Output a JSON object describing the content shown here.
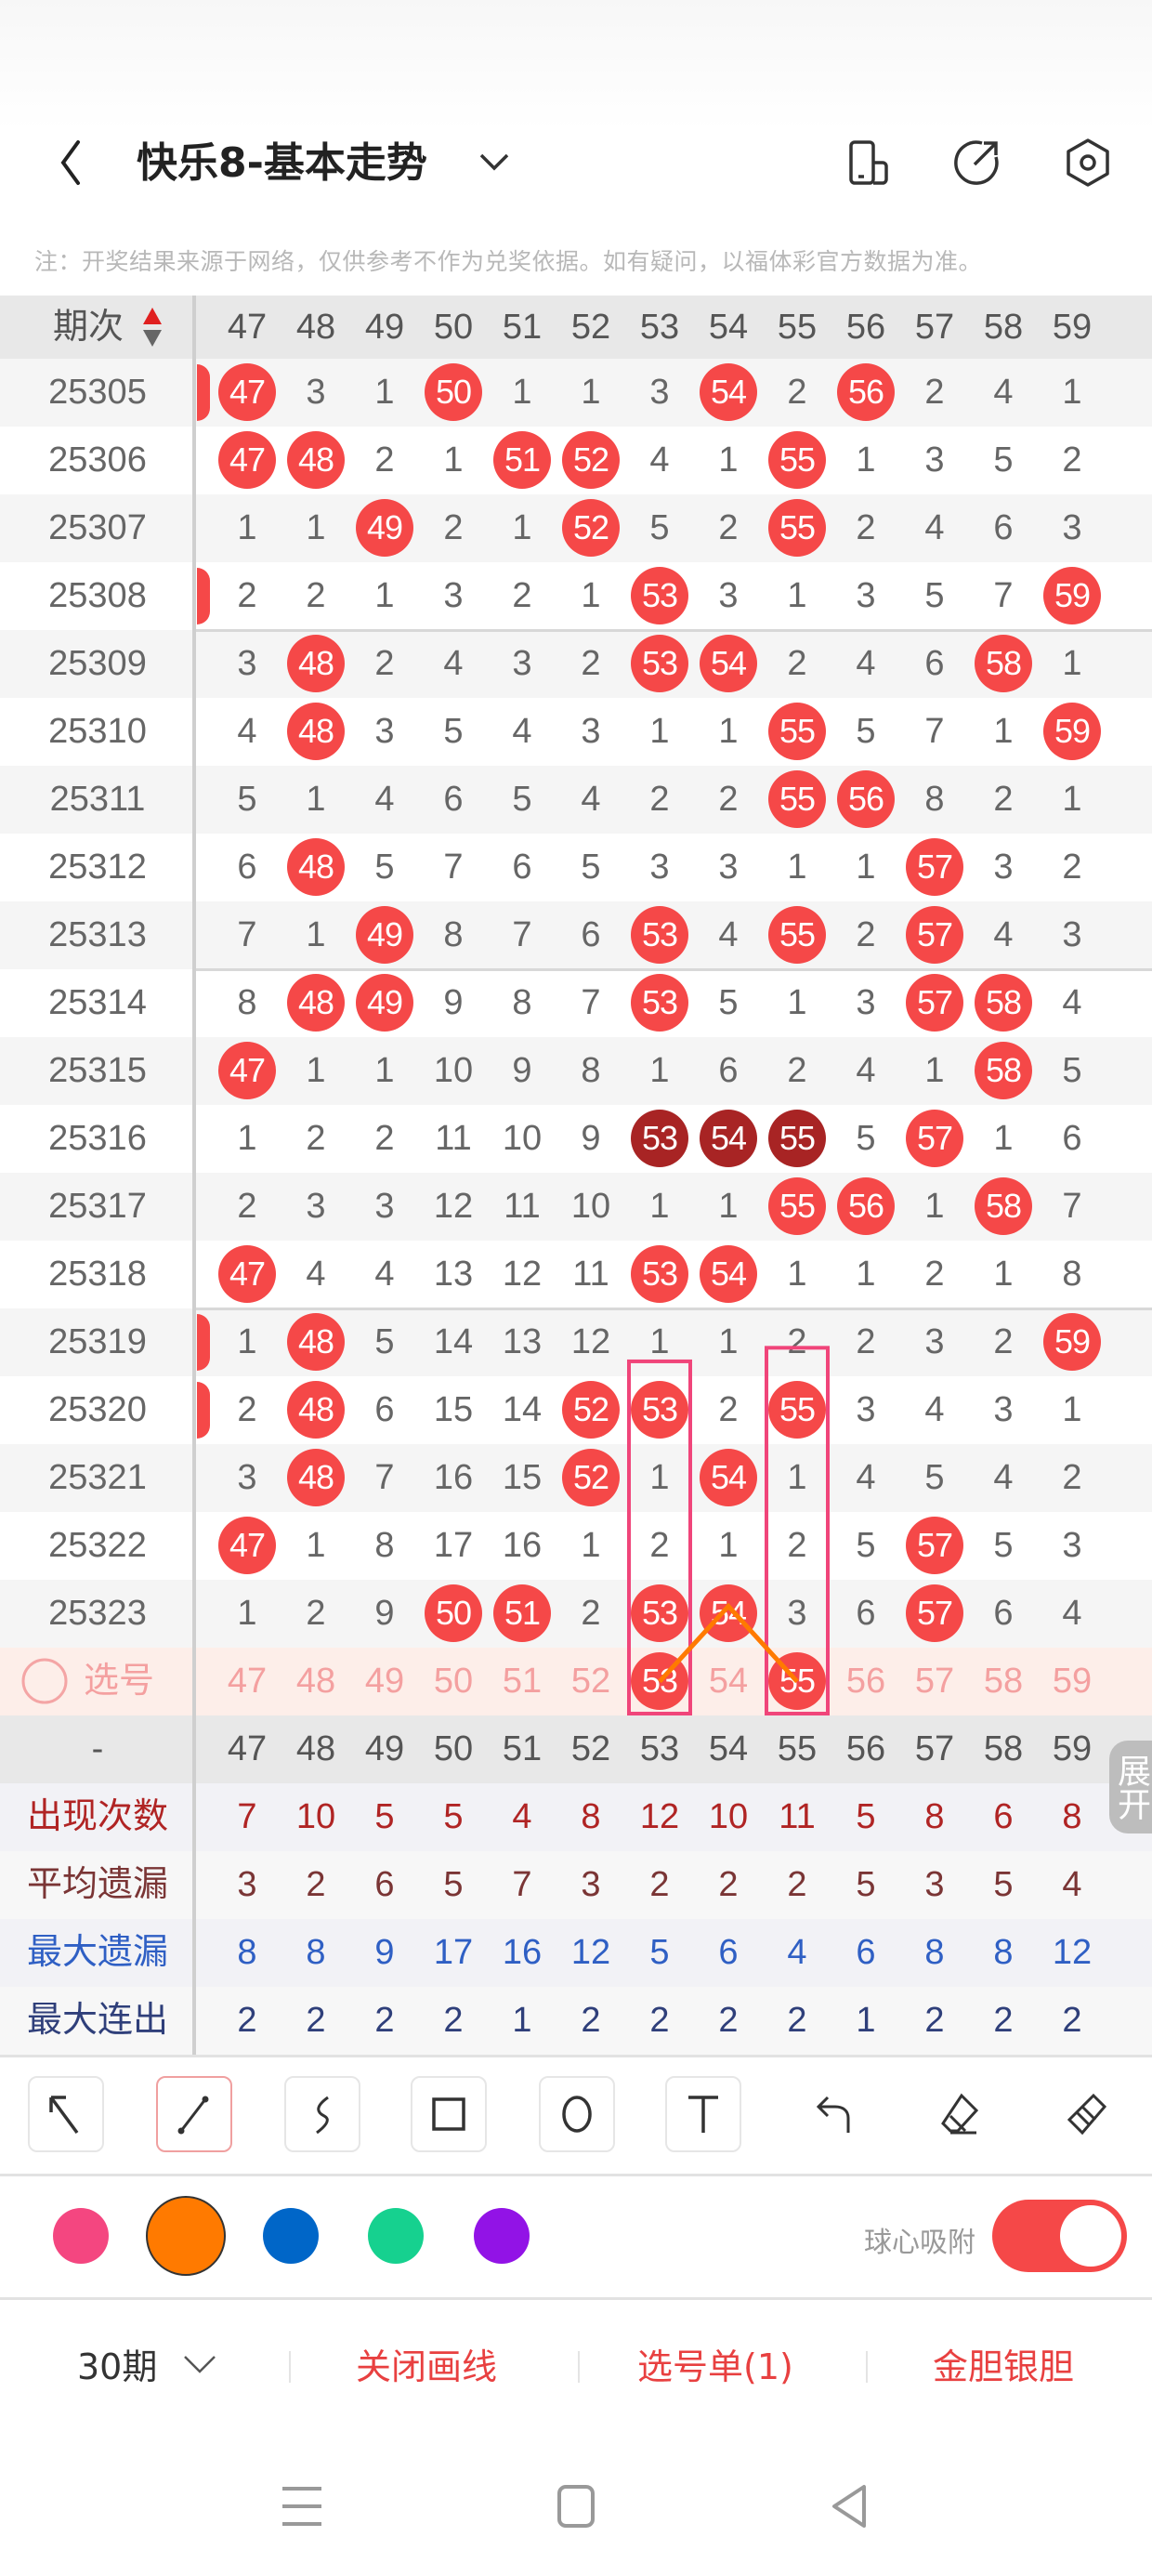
{
  "header": {
    "title": "快乐8-基本走势",
    "icons": [
      "back-chevron-icon",
      "dropdown-chevron-icon",
      "phone-layout-icon",
      "share-icon",
      "settings-icon"
    ]
  },
  "note": "注：开奖结果来源于网络，仅供参考不作为兑奖依据。如有疑问，以福体彩官方数据为准。",
  "table": {
    "period_header": "期次",
    "columns": [
      "47",
      "48",
      "49",
      "50",
      "51",
      "52",
      "53",
      "54",
      "55",
      "56",
      "57",
      "58",
      "59"
    ],
    "rows": [
      {
        "period": "25305",
        "values": [
          47,
          3,
          1,
          50,
          1,
          1,
          3,
          54,
          2,
          56,
          2,
          4,
          1
        ],
        "col46_hit": true
      },
      {
        "period": "25306",
        "values": [
          47,
          48,
          2,
          1,
          51,
          52,
          4,
          1,
          55,
          1,
          3,
          5,
          2
        ]
      },
      {
        "period": "25307",
        "values": [
          1,
          1,
          49,
          2,
          1,
          52,
          5,
          2,
          55,
          2,
          4,
          6,
          3
        ]
      },
      {
        "period": "25308",
        "values": [
          2,
          2,
          1,
          3,
          2,
          1,
          53,
          3,
          1,
          3,
          5,
          7,
          59
        ],
        "col46_hit": true
      },
      {
        "period": "25309",
        "values": [
          3,
          48,
          2,
          4,
          3,
          2,
          53,
          54,
          2,
          4,
          6,
          58,
          1
        ]
      },
      {
        "period": "25310",
        "values": [
          4,
          48,
          3,
          5,
          4,
          3,
          1,
          1,
          55,
          5,
          7,
          1,
          59
        ]
      },
      {
        "period": "25311",
        "values": [
          5,
          1,
          4,
          6,
          5,
          4,
          2,
          2,
          55,
          56,
          8,
          2,
          1
        ]
      },
      {
        "period": "25312",
        "values": [
          6,
          48,
          5,
          7,
          6,
          5,
          3,
          3,
          1,
          1,
          57,
          3,
          2
        ]
      },
      {
        "period": "25313",
        "values": [
          7,
          1,
          49,
          8,
          7,
          6,
          53,
          4,
          55,
          2,
          57,
          4,
          3
        ]
      },
      {
        "period": "25314",
        "values": [
          8,
          48,
          49,
          9,
          8,
          7,
          53,
          5,
          1,
          3,
          57,
          58,
          4
        ]
      },
      {
        "period": "25315",
        "values": [
          47,
          1,
          1,
          10,
          9,
          8,
          1,
          6,
          2,
          4,
          1,
          58,
          5
        ]
      },
      {
        "period": "25316",
        "values": [
          1,
          2,
          2,
          11,
          10,
          9,
          53,
          54,
          55,
          5,
          57,
          1,
          6
        ],
        "repeat": [
          53,
          54,
          55
        ]
      },
      {
        "period": "25317",
        "values": [
          2,
          3,
          3,
          12,
          11,
          10,
          1,
          1,
          55,
          56,
          1,
          58,
          7
        ]
      },
      {
        "period": "25318",
        "values": [
          47,
          4,
          4,
          13,
          12,
          11,
          53,
          54,
          1,
          1,
          2,
          1,
          8
        ]
      },
      {
        "period": "25319",
        "values": [
          1,
          48,
          5,
          14,
          13,
          12,
          1,
          1,
          2,
          2,
          3,
          2,
          59
        ],
        "col46_hit": true
      },
      {
        "period": "25320",
        "values": [
          2,
          48,
          6,
          15,
          14,
          52,
          53,
          2,
          55,
          3,
          4,
          3,
          1
        ],
        "col46_hit": true
      },
      {
        "period": "25321",
        "values": [
          3,
          48,
          7,
          16,
          15,
          52,
          1,
          54,
          1,
          4,
          5,
          4,
          2
        ]
      },
      {
        "period": "25322",
        "values": [
          47,
          1,
          8,
          17,
          16,
          1,
          2,
          1,
          2,
          5,
          57,
          5,
          3
        ]
      },
      {
        "period": "25323",
        "values": [
          1,
          2,
          9,
          50,
          51,
          2,
          53,
          54,
          3,
          6,
          57,
          6,
          4
        ]
      }
    ],
    "select_row": {
      "label": "选号",
      "selected": [
        "53",
        "55"
      ]
    },
    "number_row_label": "-",
    "expand_button": "展开",
    "stats": [
      {
        "label": "出现次数",
        "color": "#b02424",
        "values": [
          7,
          10,
          5,
          5,
          4,
          8,
          12,
          10,
          11,
          5,
          8,
          6,
          8
        ]
      },
      {
        "label": "平均遗漏",
        "color": "#7a3535",
        "values": [
          3,
          2,
          6,
          5,
          7,
          3,
          2,
          2,
          2,
          5,
          3,
          5,
          4
        ]
      },
      {
        "label": "最大遗漏",
        "color": "#2f5fc4",
        "values": [
          8,
          8,
          9,
          17,
          16,
          12,
          5,
          6,
          4,
          6,
          8,
          8,
          12
        ]
      },
      {
        "label": "最大连出",
        "color": "#2f3f7a",
        "values": [
          2,
          2,
          2,
          2,
          1,
          2,
          2,
          2,
          2,
          1,
          2,
          2,
          2
        ]
      }
    ],
    "highlight_columns": [
      "53",
      "55"
    ],
    "drawn_line_through": [
      "53",
      "54",
      "55"
    ]
  },
  "colors": {
    "ball": "#f54848",
    "repeat_ball": "#a82424",
    "highlight": "#f0457a",
    "line": "#ff7a00"
  },
  "draw_tools": [
    {
      "name": "pointer-tool",
      "icon": "arrow-up-left-icon"
    },
    {
      "name": "line-tool",
      "icon": "line-icon",
      "selected": true
    },
    {
      "name": "freehand-tool",
      "icon": "curve-icon"
    },
    {
      "name": "rectangle-tool",
      "icon": "rectangle-icon"
    },
    {
      "name": "circle-tool",
      "icon": "circle-icon"
    },
    {
      "name": "text-tool",
      "icon": "text-icon"
    },
    {
      "name": "undo-tool",
      "icon": "undo-icon"
    },
    {
      "name": "eraser-tool",
      "icon": "eraser-icon"
    },
    {
      "name": "clear-tool",
      "icon": "brush-icon"
    }
  ],
  "palette": {
    "colors": [
      "#f44680",
      "#ff7a00",
      "#0066c8",
      "#16d18f",
      "#9213e6"
    ],
    "selected": "#ff7a00"
  },
  "snap": {
    "label": "球心吸附",
    "on": true
  },
  "bottom_bar": {
    "period_select": "30期",
    "close_draw": "关闭画线",
    "selection_list": "选号单(1)",
    "gold_silver": "金胆银胆"
  },
  "nav": [
    "menu-icon",
    "home-icon",
    "back-icon"
  ]
}
